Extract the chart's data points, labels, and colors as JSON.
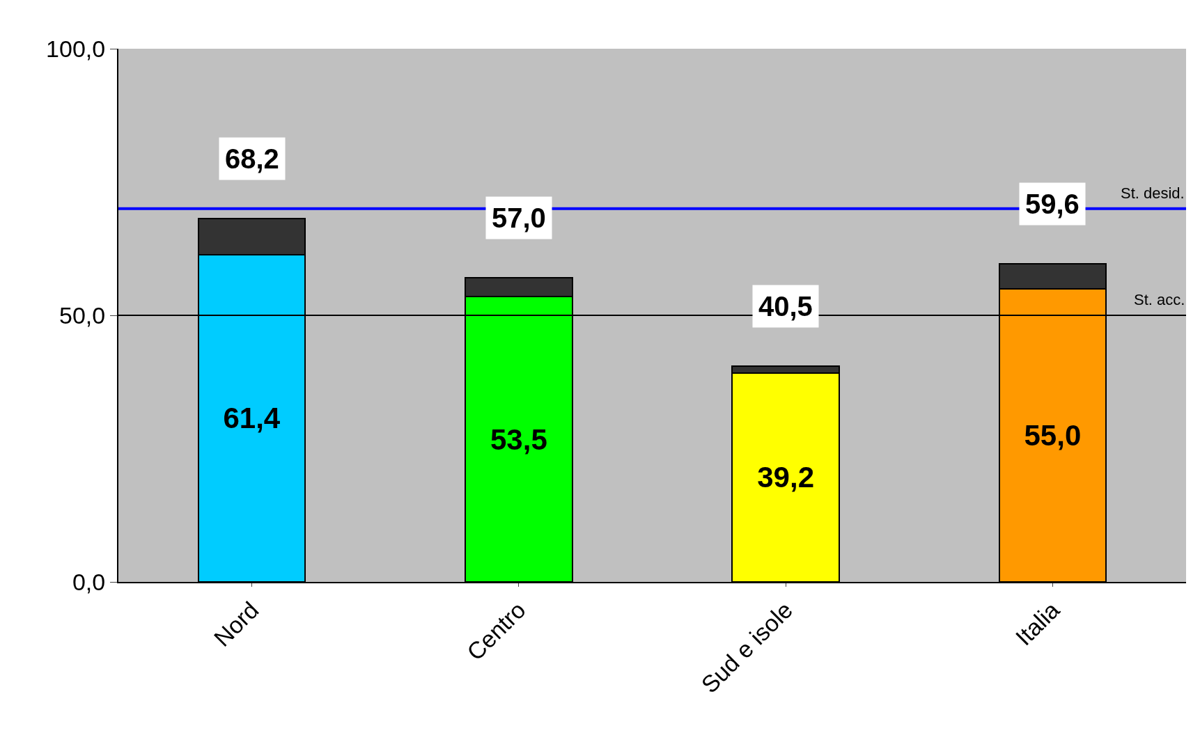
{
  "chart_data": {
    "type": "bar",
    "stacked": true,
    "categories": [
      "Nord",
      "Centro",
      "Sud e isole",
      "Italia"
    ],
    "series": [
      {
        "colors": [
          "#00ccff",
          "#00ff00",
          "#ffff00",
          "#ff9900"
        ],
        "values": [
          61.4,
          53.5,
          39.2,
          55.0
        ],
        "value_labels": [
          "61,4",
          "53,5",
          "39,2",
          "55,0"
        ]
      },
      {
        "color": "#333333",
        "values": [
          6.8,
          3.5,
          1.3,
          4.6
        ]
      }
    ],
    "totals": [
      "68,2",
      "57,0",
      "40,5",
      "59,6"
    ],
    "ylim": [
      0,
      100
    ],
    "yticks": [
      {
        "value": 0,
        "label": "0,0"
      },
      {
        "value": 50,
        "label": "50,0"
      },
      {
        "value": 100,
        "label": "100,0"
      }
    ],
    "ref_lines": [
      {
        "axis": "y",
        "value": 70,
        "label": "St. desid.",
        "color": "#0000ff"
      },
      {
        "axis": "y",
        "value": 50,
        "label": "St. acc.",
        "color": "#000000"
      }
    ]
  }
}
